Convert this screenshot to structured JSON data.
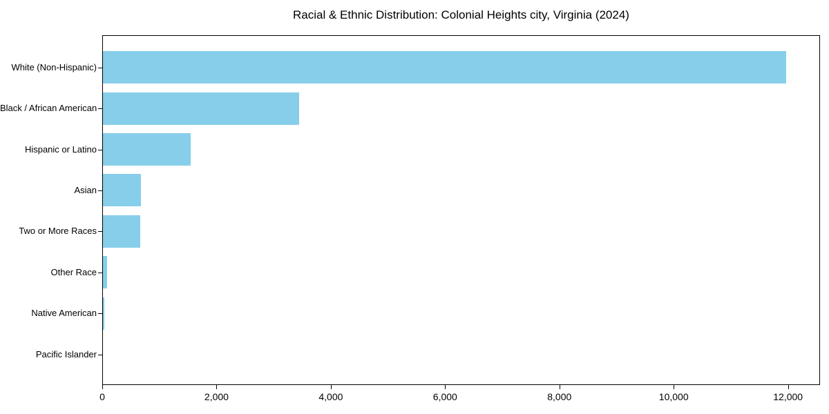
{
  "page": {
    "background_color": "#ffffff",
    "text_color": "#000000",
    "axis_color": "#000000"
  },
  "chart_data": {
    "type": "bar",
    "orientation": "horizontal",
    "title": "Racial & Ethnic Distribution: Colonial Heights city, Virginia (2024)",
    "categories": [
      "White (Non-Hispanic)",
      "Black / African American",
      "Hispanic or Latino",
      "Asian",
      "Two or More Races",
      "Other Race",
      "Native American",
      "Pacific Islander"
    ],
    "values": [
      11960,
      3435,
      1530,
      670,
      655,
      70,
      30,
      0
    ],
    "xlabel": "",
    "ylabel": "",
    "xlim": [
      0,
      12560
    ],
    "x_ticks": [
      {
        "value": 0,
        "label": "0"
      },
      {
        "value": 2000,
        "label": "2,000"
      },
      {
        "value": 4000,
        "label": "4,000"
      },
      {
        "value": 6000,
        "label": "6,000"
      },
      {
        "value": 8000,
        "label": "8,000"
      },
      {
        "value": 10000,
        "label": "10,000"
      },
      {
        "value": 12000,
        "label": "12,000"
      }
    ],
    "bar_color": "#87CEEB",
    "grid": false,
    "legend_position": "none"
  }
}
